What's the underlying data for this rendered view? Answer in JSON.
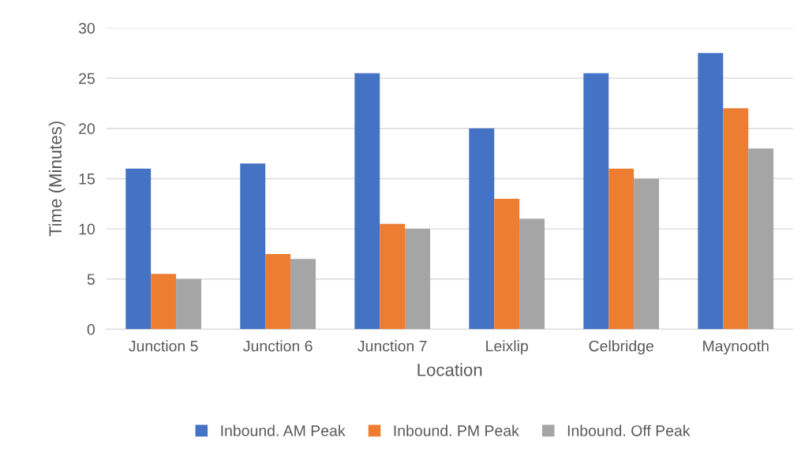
{
  "chart_data": {
    "type": "bar",
    "xlabel": "Location",
    "ylabel": "Time (Minutes)",
    "categories": [
      "Junction 5",
      "Junction 6",
      "Junction 7",
      "Leixlip",
      "Celbridge",
      "Maynooth"
    ],
    "series": [
      {
        "name": "Inbound. AM Peak",
        "color": "#4472c4",
        "values": [
          16,
          16.5,
          25.5,
          20,
          25.5,
          27.5
        ]
      },
      {
        "name": "Inbound. PM Peak",
        "color": "#ed7d31",
        "values": [
          5.5,
          7.5,
          10.5,
          13,
          16,
          22
        ]
      },
      {
        "name": "Inbound. Off Peak",
        "color": "#a5a5a5",
        "values": [
          5,
          7,
          10,
          11,
          15,
          18
        ]
      }
    ],
    "ylim": [
      0,
      30
    ],
    "yticks": [
      0,
      5,
      10,
      15,
      20,
      25,
      30
    ],
    "grid": "y",
    "legend": "bottom"
  }
}
